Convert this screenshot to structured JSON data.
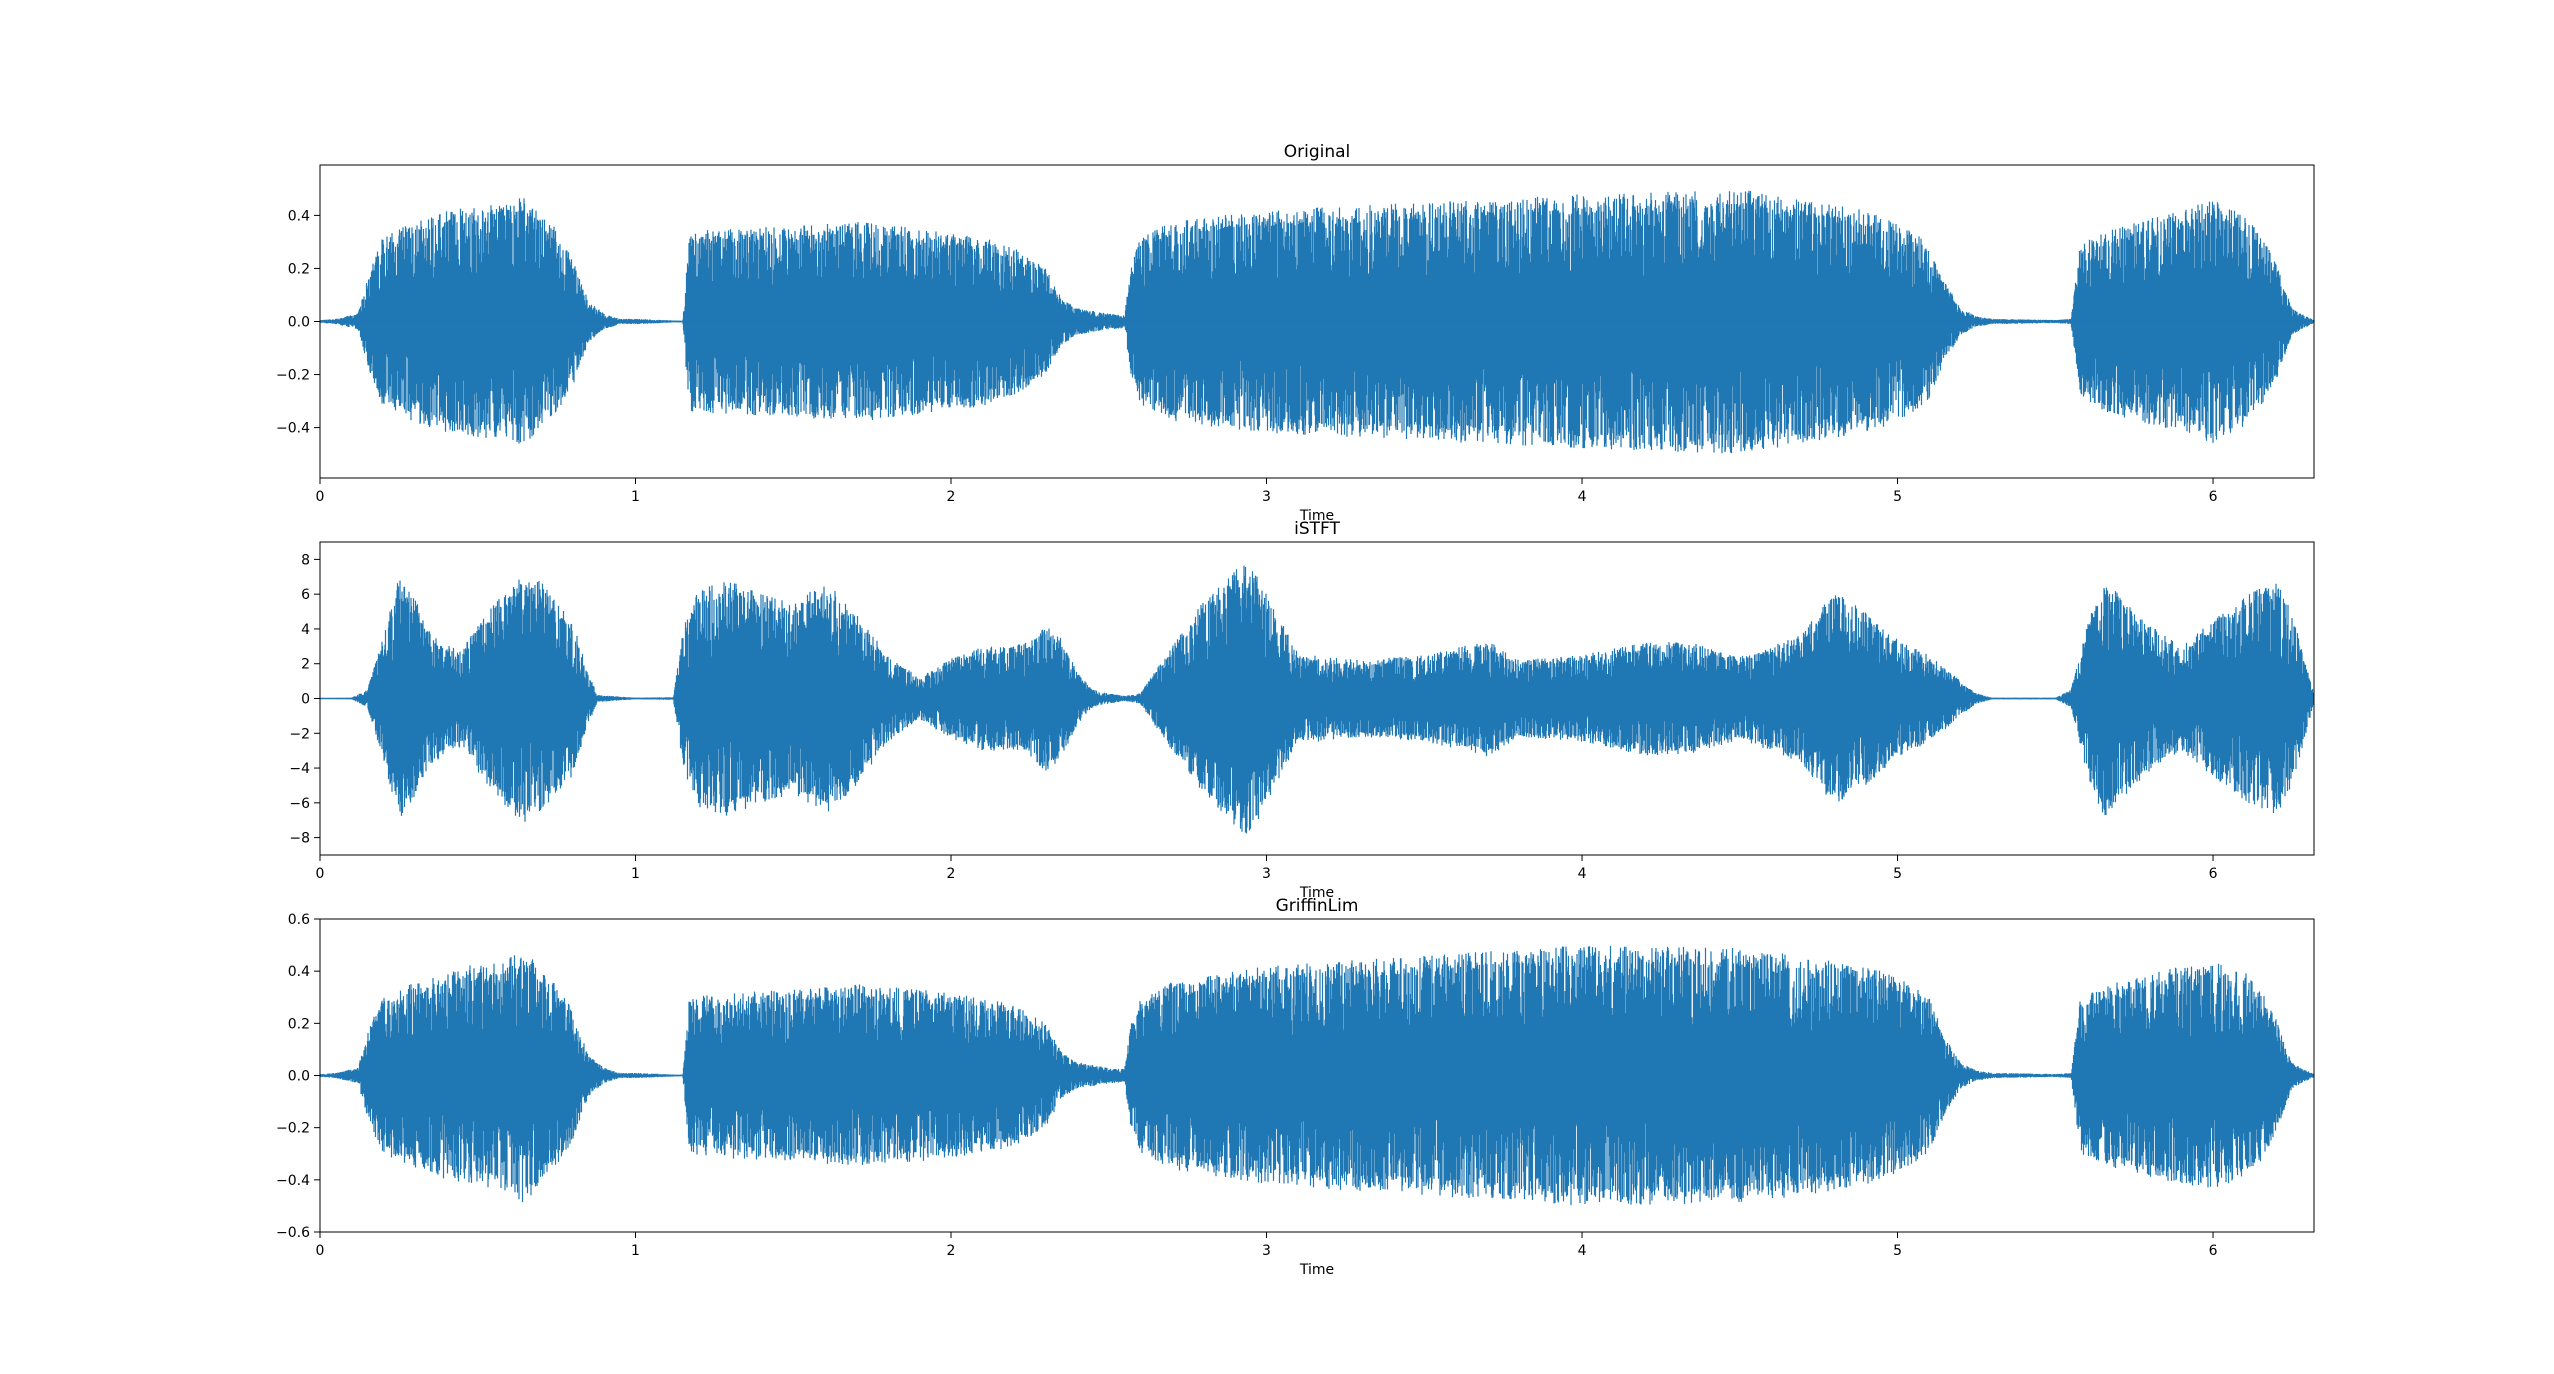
{
  "colors": {
    "waveform": "#1f77b4",
    "axes": "#000000",
    "background": "#ffffff"
  },
  "chart_data": [
    {
      "type": "line",
      "subtype": "waveform",
      "title": "Original",
      "xlabel": "Time",
      "ylabel": "",
      "xlim": [
        0,
        6.32
      ],
      "ylim": [
        -0.59,
        0.59
      ],
      "xticks": [
        "0",
        "1",
        "2",
        "3",
        "4",
        "5",
        "6"
      ],
      "yticks": [
        "−0.4",
        "−0.2",
        "0.0",
        "0.2",
        "0.4"
      ],
      "ytick_values": [
        -0.4,
        -0.2,
        0.0,
        0.2,
        0.4
      ],
      "envelope": {
        "x": [
          0,
          0.05,
          0.12,
          0.16,
          0.2,
          0.3,
          0.4,
          0.5,
          0.6,
          0.65,
          0.7,
          0.75,
          0.8,
          0.85,
          0.9,
          0.95,
          1.0,
          1.05,
          1.1,
          1.15,
          1.17,
          1.3,
          1.5,
          1.7,
          1.9,
          2.1,
          2.2,
          2.3,
          2.35,
          2.4,
          2.45,
          2.5,
          2.55,
          2.57,
          2.6,
          2.7,
          3.0,
          3.5,
          4.0,
          4.5,
          4.7,
          4.9,
          5.0,
          5.1,
          5.15,
          5.2,
          5.25,
          5.3,
          5.5,
          5.55,
          5.58,
          5.7,
          5.9,
          6.0,
          6.1,
          6.15,
          6.2,
          6.25,
          6.32
        ],
        "amplitude": [
          0.005,
          0.01,
          0.03,
          0.2,
          0.32,
          0.38,
          0.42,
          0.44,
          0.44,
          0.48,
          0.4,
          0.35,
          0.25,
          0.08,
          0.03,
          0.01,
          0.01,
          0.008,
          0.005,
          0.003,
          0.34,
          0.35,
          0.36,
          0.38,
          0.35,
          0.32,
          0.28,
          0.2,
          0.09,
          0.05,
          0.04,
          0.03,
          0.025,
          0.2,
          0.32,
          0.38,
          0.42,
          0.45,
          0.48,
          0.5,
          0.46,
          0.42,
          0.38,
          0.3,
          0.15,
          0.05,
          0.02,
          0.01,
          0.006,
          0.01,
          0.3,
          0.36,
          0.42,
          0.46,
          0.4,
          0.33,
          0.22,
          0.05,
          0.005
        ]
      }
    },
    {
      "type": "line",
      "subtype": "waveform",
      "title": "iSTFT",
      "xlabel": "Time",
      "ylabel": "",
      "xlim": [
        0,
        6.32
      ],
      "ylim": [
        -9.0,
        9.0
      ],
      "xticks": [
        "0",
        "1",
        "2",
        "3",
        "4",
        "5",
        "6"
      ],
      "yticks": [
        "−8",
        "−6",
        "−4",
        "−2",
        "0",
        "2",
        "4",
        "6",
        "8"
      ],
      "ytick_values": [
        -8,
        -6,
        -4,
        -2,
        0,
        2,
        4,
        6,
        8
      ],
      "envelope": {
        "x": [
          0,
          0.1,
          0.15,
          0.2,
          0.25,
          0.3,
          0.35,
          0.4,
          0.45,
          0.5,
          0.55,
          0.6,
          0.65,
          0.7,
          0.75,
          0.8,
          0.85,
          0.88,
          1.0,
          1.12,
          1.15,
          1.2,
          1.3,
          1.4,
          1.5,
          1.6,
          1.7,
          1.8,
          1.9,
          2.0,
          2.1,
          2.2,
          2.25,
          2.3,
          2.35,
          2.4,
          2.45,
          2.5,
          2.55,
          2.6,
          2.7,
          2.8,
          2.9,
          2.95,
          3.0,
          3.1,
          3.3,
          3.5,
          3.6,
          3.7,
          3.8,
          4.0,
          4.2,
          4.35,
          4.5,
          4.6,
          4.7,
          4.8,
          4.9,
          5.0,
          5.1,
          5.15,
          5.2,
          5.25,
          5.3,
          5.5,
          5.55,
          5.6,
          5.65,
          5.7,
          5.8,
          5.9,
          6.0,
          6.1,
          6.2,
          6.25,
          6.32
        ],
        "amplitude": [
          0.02,
          0.05,
          0.5,
          3.5,
          7.0,
          5.8,
          3.8,
          3.2,
          2.8,
          4.2,
          5.5,
          6.5,
          7.2,
          6.8,
          5.5,
          4.5,
          1.5,
          0.2,
          0.05,
          0.08,
          4.0,
          6.3,
          6.8,
          6.0,
          5.5,
          6.8,
          5.0,
          2.5,
          1.2,
          2.3,
          3.0,
          3.0,
          3.4,
          4.2,
          3.5,
          1.5,
          0.5,
          0.3,
          0.15,
          0.3,
          3.0,
          5.6,
          7.5,
          8.0,
          6.0,
          2.6,
          2.2,
          2.5,
          2.9,
          3.4,
          2.2,
          2.5,
          3.3,
          3.2,
          2.4,
          3.0,
          3.8,
          6.2,
          5.0,
          3.4,
          2.5,
          1.8,
          1.0,
          0.3,
          0.05,
          0.05,
          0.5,
          4.3,
          7.0,
          6.0,
          4.2,
          3.0,
          4.5,
          5.9,
          6.8,
          5.0,
          0.3
        ]
      }
    },
    {
      "type": "line",
      "subtype": "waveform",
      "title": "GriffinLim",
      "xlabel": "Time",
      "ylabel": "",
      "xlim": [
        0,
        6.32
      ],
      "ylim": [
        -0.6,
        0.6
      ],
      "xticks": [
        "0",
        "1",
        "2",
        "3",
        "4",
        "5",
        "6"
      ],
      "yticks": [
        "−0.6",
        "−0.4",
        "−0.2",
        "0.0",
        "0.2",
        "0.4",
        "0.6"
      ],
      "ytick_values": [
        -0.6,
        -0.4,
        -0.2,
        0.0,
        0.2,
        0.4,
        0.6
      ],
      "envelope": {
        "x": [
          0,
          0.05,
          0.12,
          0.16,
          0.2,
          0.3,
          0.4,
          0.5,
          0.6,
          0.65,
          0.7,
          0.75,
          0.8,
          0.85,
          0.9,
          0.95,
          1.0,
          1.05,
          1.1,
          1.15,
          1.17,
          1.3,
          1.5,
          1.7,
          1.9,
          2.1,
          2.2,
          2.3,
          2.35,
          2.4,
          2.45,
          2.5,
          2.55,
          2.57,
          2.6,
          2.7,
          3.0,
          3.5,
          4.0,
          4.5,
          4.7,
          4.9,
          5.0,
          5.1,
          5.15,
          5.2,
          5.25,
          5.3,
          5.5,
          5.55,
          5.58,
          5.7,
          5.9,
          6.0,
          6.1,
          6.15,
          6.2,
          6.25,
          6.32
        ],
        "amplitude": [
          0.005,
          0.01,
          0.03,
          0.2,
          0.3,
          0.36,
          0.4,
          0.43,
          0.45,
          0.5,
          0.4,
          0.35,
          0.25,
          0.08,
          0.03,
          0.01,
          0.01,
          0.008,
          0.005,
          0.003,
          0.3,
          0.32,
          0.33,
          0.35,
          0.33,
          0.3,
          0.27,
          0.2,
          0.09,
          0.05,
          0.04,
          0.03,
          0.025,
          0.2,
          0.3,
          0.36,
          0.42,
          0.46,
          0.5,
          0.49,
          0.46,
          0.42,
          0.38,
          0.3,
          0.15,
          0.05,
          0.02,
          0.01,
          0.006,
          0.01,
          0.3,
          0.36,
          0.42,
          0.44,
          0.4,
          0.33,
          0.22,
          0.05,
          0.005
        ]
      }
    }
  ]
}
